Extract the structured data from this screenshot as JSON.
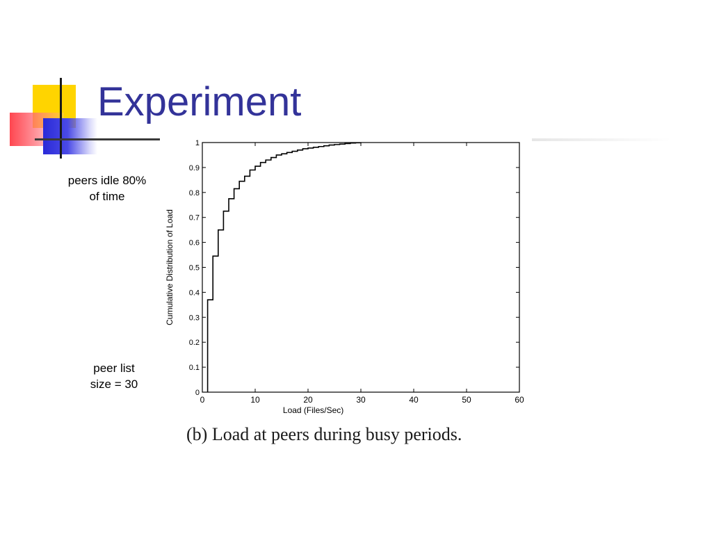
{
  "slide": {
    "title": "Experiment",
    "notes": [
      "peers idle 80%\nof time",
      "peer list\nsize = 30"
    ],
    "caption": "(b) Load at peers during busy periods."
  },
  "chart_data": {
    "type": "line",
    "title": "",
    "xlabel": "Load (Files/Sec)",
    "ylabel": "Cumulative Distribution of Load",
    "xlim": [
      0,
      60
    ],
    "ylim": [
      0,
      1
    ],
    "xticks": [
      0,
      10,
      20,
      30,
      40,
      50,
      60
    ],
    "yticks": [
      0,
      0.1,
      0.2,
      0.3,
      0.4,
      0.5,
      0.6,
      0.7,
      0.8,
      0.9,
      1
    ],
    "grid": false,
    "step": true,
    "series": [
      {
        "x": [
          1,
          2,
          3,
          4,
          5,
          6,
          7,
          8,
          9,
          10,
          11,
          12,
          13,
          14,
          15,
          16,
          17,
          18,
          19,
          20,
          21,
          22,
          23,
          24,
          25,
          26,
          27,
          28,
          29,
          30
        ],
        "y": [
          0.37,
          0.545,
          0.65,
          0.725,
          0.775,
          0.815,
          0.845,
          0.865,
          0.89,
          0.905,
          0.92,
          0.93,
          0.94,
          0.95,
          0.955,
          0.96,
          0.965,
          0.97,
          0.975,
          0.978,
          0.981,
          0.984,
          0.987,
          0.99,
          0.992,
          0.994,
          0.996,
          0.998,
          0.999,
          1.0
        ]
      }
    ],
    "colors": {
      "line": "#000000",
      "axis": "#000000"
    }
  }
}
